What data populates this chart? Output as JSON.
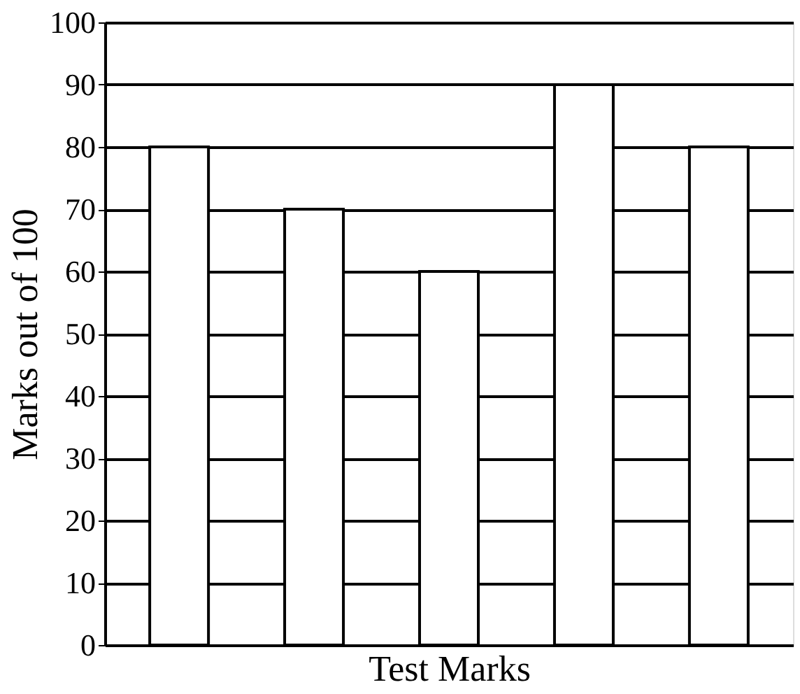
{
  "chart_data": {
    "type": "bar",
    "xlabel": "Test Marks",
    "ylabel": "Marks out of 100",
    "categories": [
      null,
      null,
      null,
      null,
      null
    ],
    "values": [
      80,
      70,
      60,
      90,
      80
    ],
    "color": "#ffffff",
    "ylim": [
      0,
      100
    ],
    "yticks": [
      0,
      10,
      20,
      30,
      40,
      50,
      60,
      70,
      80,
      90,
      100
    ],
    "grid": "y",
    "tick_labels": "y"
  }
}
